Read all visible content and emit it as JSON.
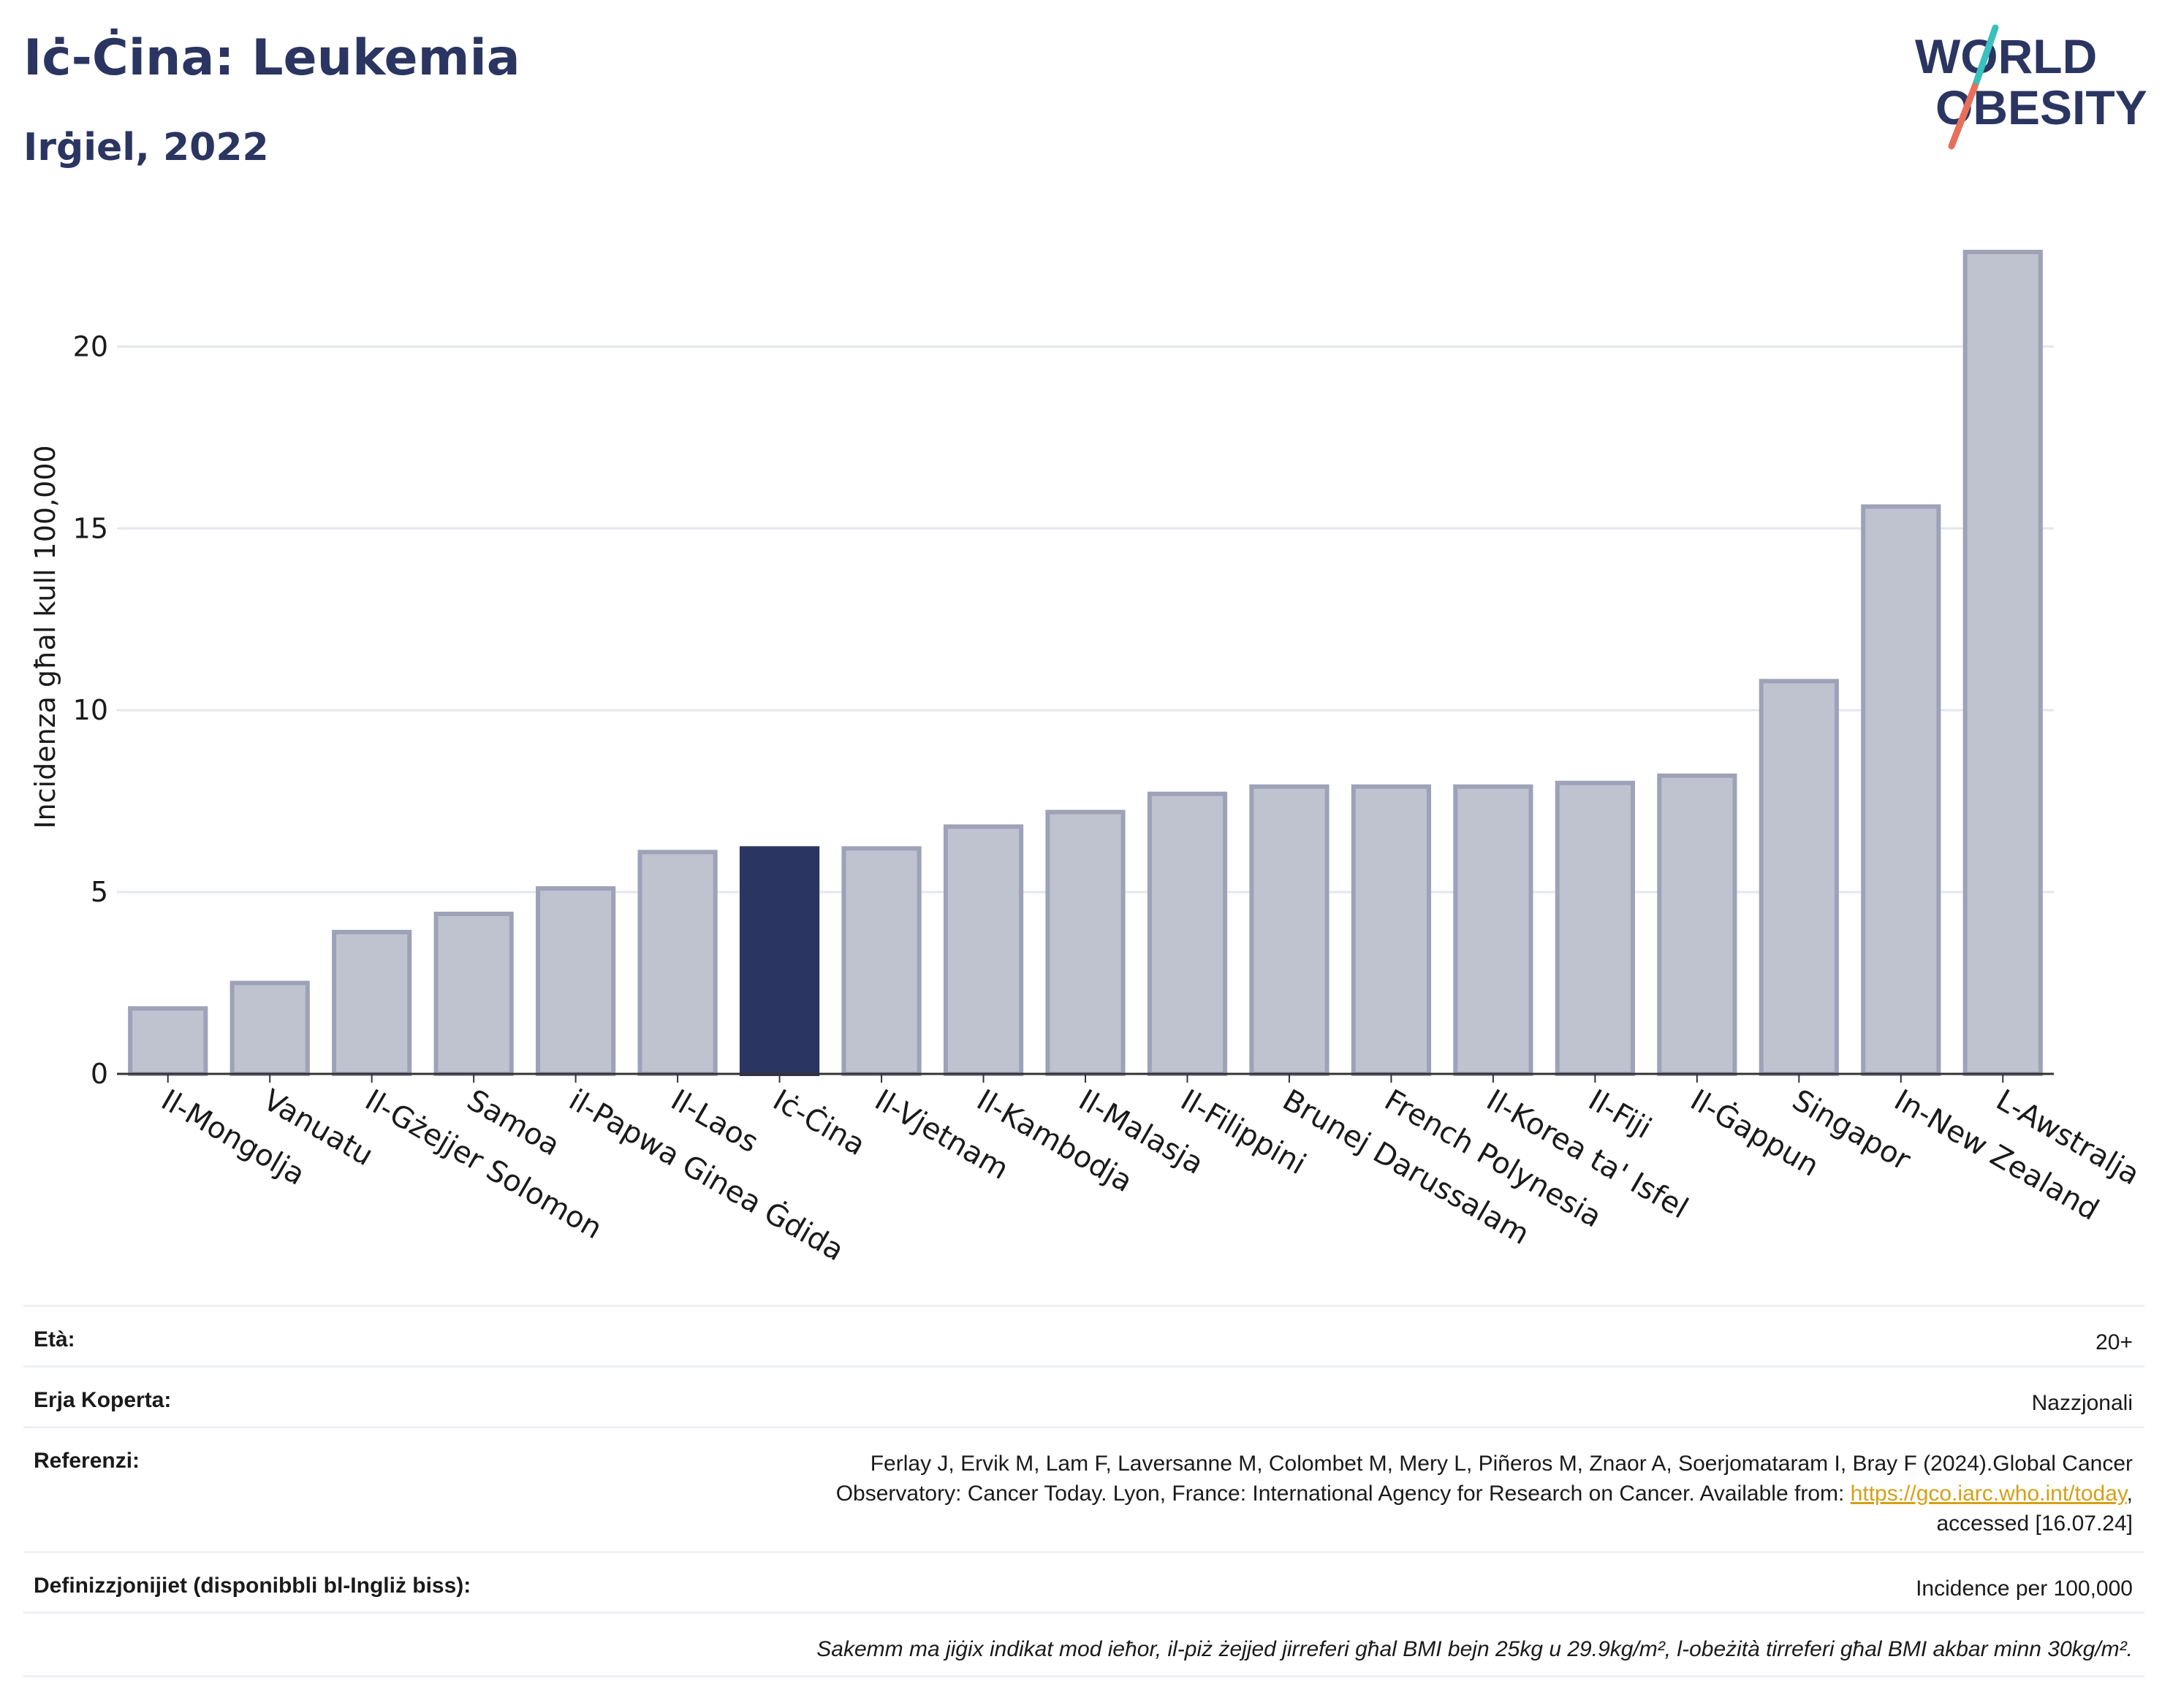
{
  "header": {
    "title": "Iċ-Ċina: Leukemia",
    "subtitle": "Irġiel, 2022"
  },
  "logo": {
    "line1": "WORLD",
    "line2": "OBESITY",
    "color_text": "#2b3561",
    "color_slash_top": "#3bbfbf",
    "color_slash_bottom": "#e8705a"
  },
  "colors": {
    "bar": "#bfc2cf",
    "bar_stroke": "#9da2b8",
    "highlight": "#2b3561",
    "grid": "#e5e7ee",
    "axis": "#333333"
  },
  "chart_data": {
    "type": "bar",
    "ylabel": "Incidenza għal kull 100,000",
    "ylim": [
      0,
      23
    ],
    "yticks": [
      0,
      5,
      10,
      15,
      20
    ],
    "grid": true,
    "highlight": "Iċ-Ċina",
    "categories": [
      "Il-Mongolja",
      "Vanuatu",
      "Il-Gżejjer Solomon",
      "Samoa",
      "il-Papwa Ginea Ġdida",
      "Il-Laos",
      "Iċ-Ċina",
      "Il-Vjetnam",
      "Il-Kambodja",
      "Il-Malasja",
      "Il-Filippini",
      "Brunej Darussalam",
      "French Polynesia",
      "Il-Korea ta' Isfel",
      "Il-Fiji",
      "Il-Ġappun",
      "Singapor",
      "In-New Zealand",
      "L-Awstralja"
    ],
    "values": [
      1.8,
      2.5,
      3.9,
      4.4,
      5.1,
      6.1,
      6.2,
      6.2,
      6.8,
      7.2,
      7.7,
      7.9,
      7.9,
      7.9,
      8.0,
      8.2,
      10.8,
      15.6,
      22.6
    ]
  },
  "meta": {
    "age_label": "Età:",
    "age_value": "20+",
    "coverage_label": "Erja Koperta:",
    "coverage_value": "Nazzjonali",
    "references_label": "Referenzi:",
    "references_line1": "Ferlay J, Ervik M, Lam F, Laversanne M, Colombet M, Mery L, Piñeros M, Znaor A, Soerjomataram I, Bray F (2024).Global Cancer",
    "references_line2_pre": "Observatory: Cancer Today. Lyon, France: International Agency for Research on Cancer. Available from: ",
    "references_link": "https://gco.iarc.who.int/today",
    "references_line2_post": ",",
    "references_line3": "accessed [16.07.24]",
    "definitions_label": "Definizzjonijiet (disponibbli bl-Ingliż biss):",
    "definitions_value": "Incidence per 100,000",
    "note": "Sakemm ma jiġix indikat mod ieħor, il-piż żejjed jirreferi għal BMI bejn 25kg u 29.9kg/m², l-obeżità tirreferi għal BMI akbar minn 30kg/m²."
  }
}
